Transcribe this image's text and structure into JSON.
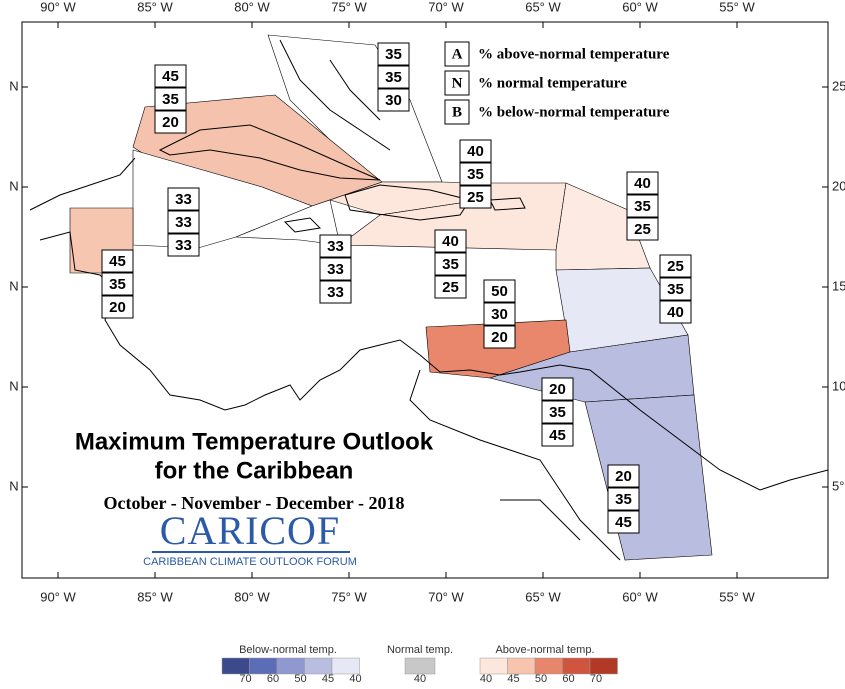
{
  "map": {
    "lon_labels": [
      "90° W",
      "85° W",
      "80° W",
      "75° W",
      "70° W",
      "65° W",
      "60° W",
      "55° W"
    ],
    "lat_labels_left": [
      "N",
      "N",
      "N",
      "N",
      "N"
    ],
    "lat_labels_right": [
      "25",
      "20",
      "15",
      "10",
      "5°"
    ]
  },
  "key": [
    {
      "letter": "A",
      "text": "% above-normal temperature"
    },
    {
      "letter": "N",
      "text": "% normal temperature"
    },
    {
      "letter": "B",
      "text": "% below-normal temperature"
    }
  ],
  "regions": [
    {
      "values": [
        35,
        35,
        30
      ],
      "color": "#ffffff"
    },
    {
      "values": [
        45,
        35,
        20
      ],
      "color": "#f5c3ad"
    },
    {
      "values": [
        33,
        33,
        33
      ],
      "color": "#ffffff"
    },
    {
      "values": [
        33,
        33,
        33
      ],
      "color": "#ffffff"
    },
    {
      "values": [
        45,
        35,
        20
      ],
      "color": "#f7c6b1"
    },
    {
      "values": [
        40,
        35,
        25
      ],
      "color": "#fde6dc"
    },
    {
      "values": [
        40,
        35,
        25
      ],
      "color": "#fde6dc"
    },
    {
      "values": [
        40,
        35,
        25
      ],
      "color": "#fdebe3"
    },
    {
      "values": [
        25,
        35,
        40
      ],
      "color": "#e6e8f5"
    },
    {
      "values": [
        50,
        30,
        20
      ],
      "color": "#e8876c"
    },
    {
      "values": [
        20,
        35,
        45
      ],
      "color": "#b9bde0"
    },
    {
      "values": [
        20,
        35,
        45
      ],
      "color": "#b9bde0"
    }
  ],
  "title": "Maximum Temperature Outlook",
  "title2": "for the Caribbean",
  "period": "October - November - December - 2018",
  "logo": "CARICOF",
  "logo_subtitle": "CARIBBEAN CLIMATE OUTLOOK FORUM",
  "legend": {
    "below": {
      "title": "Below-normal temp.",
      "colors": [
        "#3b4a8c",
        "#5b6db7",
        "#8f98cf",
        "#b9bde0",
        "#e6e8f5"
      ],
      "labels": [
        70,
        60,
        50,
        45,
        40
      ]
    },
    "normal": {
      "title": "Normal temp.",
      "colors": [
        "#c8c8c8"
      ],
      "labels": [
        40
      ]
    },
    "above": {
      "title": "Above-normal temp.",
      "colors": [
        "#fde6dc",
        "#f7c4ae",
        "#e8866b",
        "#d0553f",
        "#b03a25"
      ],
      "labels": [
        40,
        45,
        50,
        60,
        70
      ]
    }
  }
}
